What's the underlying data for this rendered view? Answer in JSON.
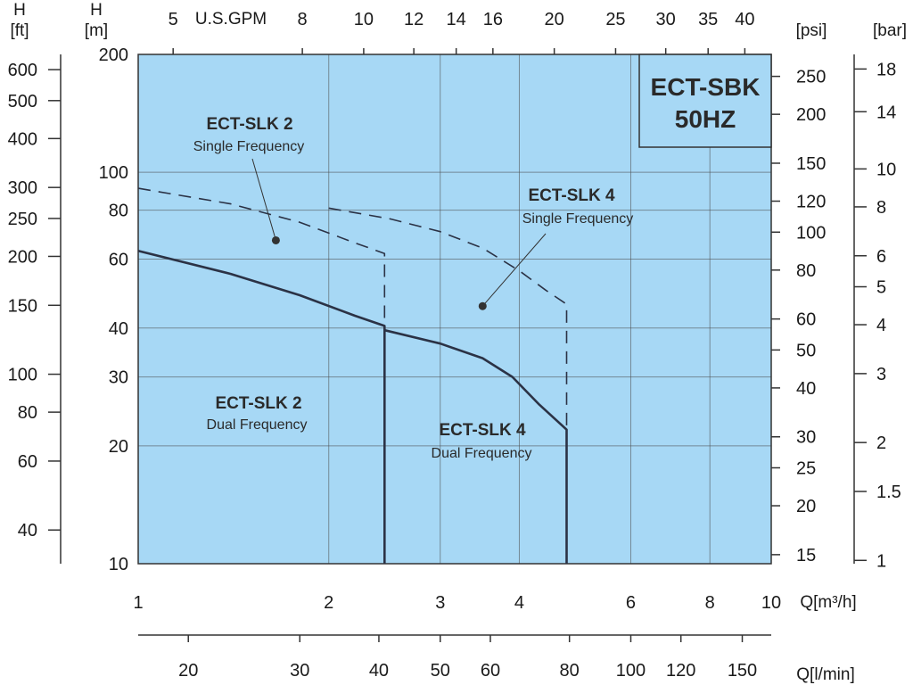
{
  "chart_data": {
    "type": "line",
    "model": {
      "line1": "ECT-SBK",
      "line2": "50HZ"
    },
    "plot_background": "#a7d8f5",
    "curve_color": "#2b3245",
    "x_scale": "log",
    "y_scale": "log",
    "xlim": [
      1,
      10
    ],
    "ylim": [
      10,
      200
    ],
    "x_axis": {
      "unit": "Q[m³/h]",
      "ticks": [
        1,
        2,
        3,
        4,
        6,
        8,
        10
      ]
    },
    "y_axis_m": {
      "unit": "H [m]",
      "unit_top": "H",
      "unit_bottom": "[m]",
      "ticks": [
        10,
        20,
        30,
        40,
        60,
        80,
        100,
        200
      ]
    },
    "y_axis_ft": {
      "unit_top": "H",
      "unit_bottom": "[ft]",
      "ticks": [
        40,
        60,
        80,
        100,
        150,
        200,
        250,
        300,
        400,
        500,
        600
      ]
    },
    "y_axis_psi": {
      "unit": "[psi]",
      "ticks": [
        15,
        20,
        25,
        30,
        40,
        50,
        60,
        80,
        100,
        120,
        150,
        200,
        250
      ]
    },
    "y_axis_bar": {
      "unit": "[bar]",
      "ticks": [
        1,
        1.5,
        2,
        3,
        4,
        5,
        6,
        8,
        10,
        14,
        18
      ]
    },
    "gpm_axis": {
      "unit": "U.S.GPM",
      "ticks": [
        5,
        8,
        10,
        12,
        14,
        16,
        20,
        25,
        30,
        35,
        40
      ]
    },
    "lpm_axis": {
      "unit": "Q[l/min]",
      "ticks": [
        20,
        30,
        40,
        50,
        60,
        80,
        100,
        120,
        150
      ]
    },
    "series": [
      {
        "name": "ECT-SLK 2",
        "subtitle": "Dual Frequency",
        "style": "solid",
        "points": [
          [
            1,
            63
          ],
          [
            1.4,
            55
          ],
          [
            1.8,
            48.5
          ],
          [
            2.2,
            43
          ],
          [
            2.45,
            40.5
          ],
          [
            2.45,
            10
          ]
        ]
      },
      {
        "name": "ECT-SLK 4",
        "subtitle": "Dual Frequency",
        "style": "solid",
        "points": [
          [
            2.45,
            39.5
          ],
          [
            3.0,
            36.5
          ],
          [
            3.5,
            33.5
          ],
          [
            3.9,
            30
          ],
          [
            4.3,
            25.5
          ],
          [
            4.75,
            22
          ],
          [
            4.75,
            10
          ]
        ]
      },
      {
        "name": "ECT-SLK 2",
        "subtitle": "Single Frequency",
        "style": "dashed",
        "points": [
          [
            1,
            91
          ],
          [
            1.4,
            83
          ],
          [
            1.8,
            74.5
          ],
          [
            2.2,
            66
          ],
          [
            2.45,
            62
          ],
          [
            2.45,
            41
          ]
        ]
      },
      {
        "name": "ECT-SLK 4",
        "subtitle": "Single Frequency",
        "style": "dashed",
        "points": [
          [
            2.0,
            81
          ],
          [
            2.5,
            76
          ],
          [
            3.0,
            70.5
          ],
          [
            3.5,
            64
          ],
          [
            4.0,
            56
          ],
          [
            4.4,
            50
          ],
          [
            4.75,
            46
          ],
          [
            4.75,
            10
          ]
        ]
      }
    ],
    "annotations": [
      {
        "title": "ECT-SLK 2",
        "subtitle": "Single Frequency",
        "marker": [
          1.65,
          67
        ]
      },
      {
        "title": "ECT-SLK 4",
        "subtitle": "Single Frequency",
        "marker": [
          3.5,
          45.5
        ]
      },
      {
        "title": "ECT-SLK 2",
        "subtitle": "Dual Frequency"
      },
      {
        "title": "ECT-SLK 4",
        "subtitle": "Dual Frequency"
      }
    ],
    "grid": true
  }
}
